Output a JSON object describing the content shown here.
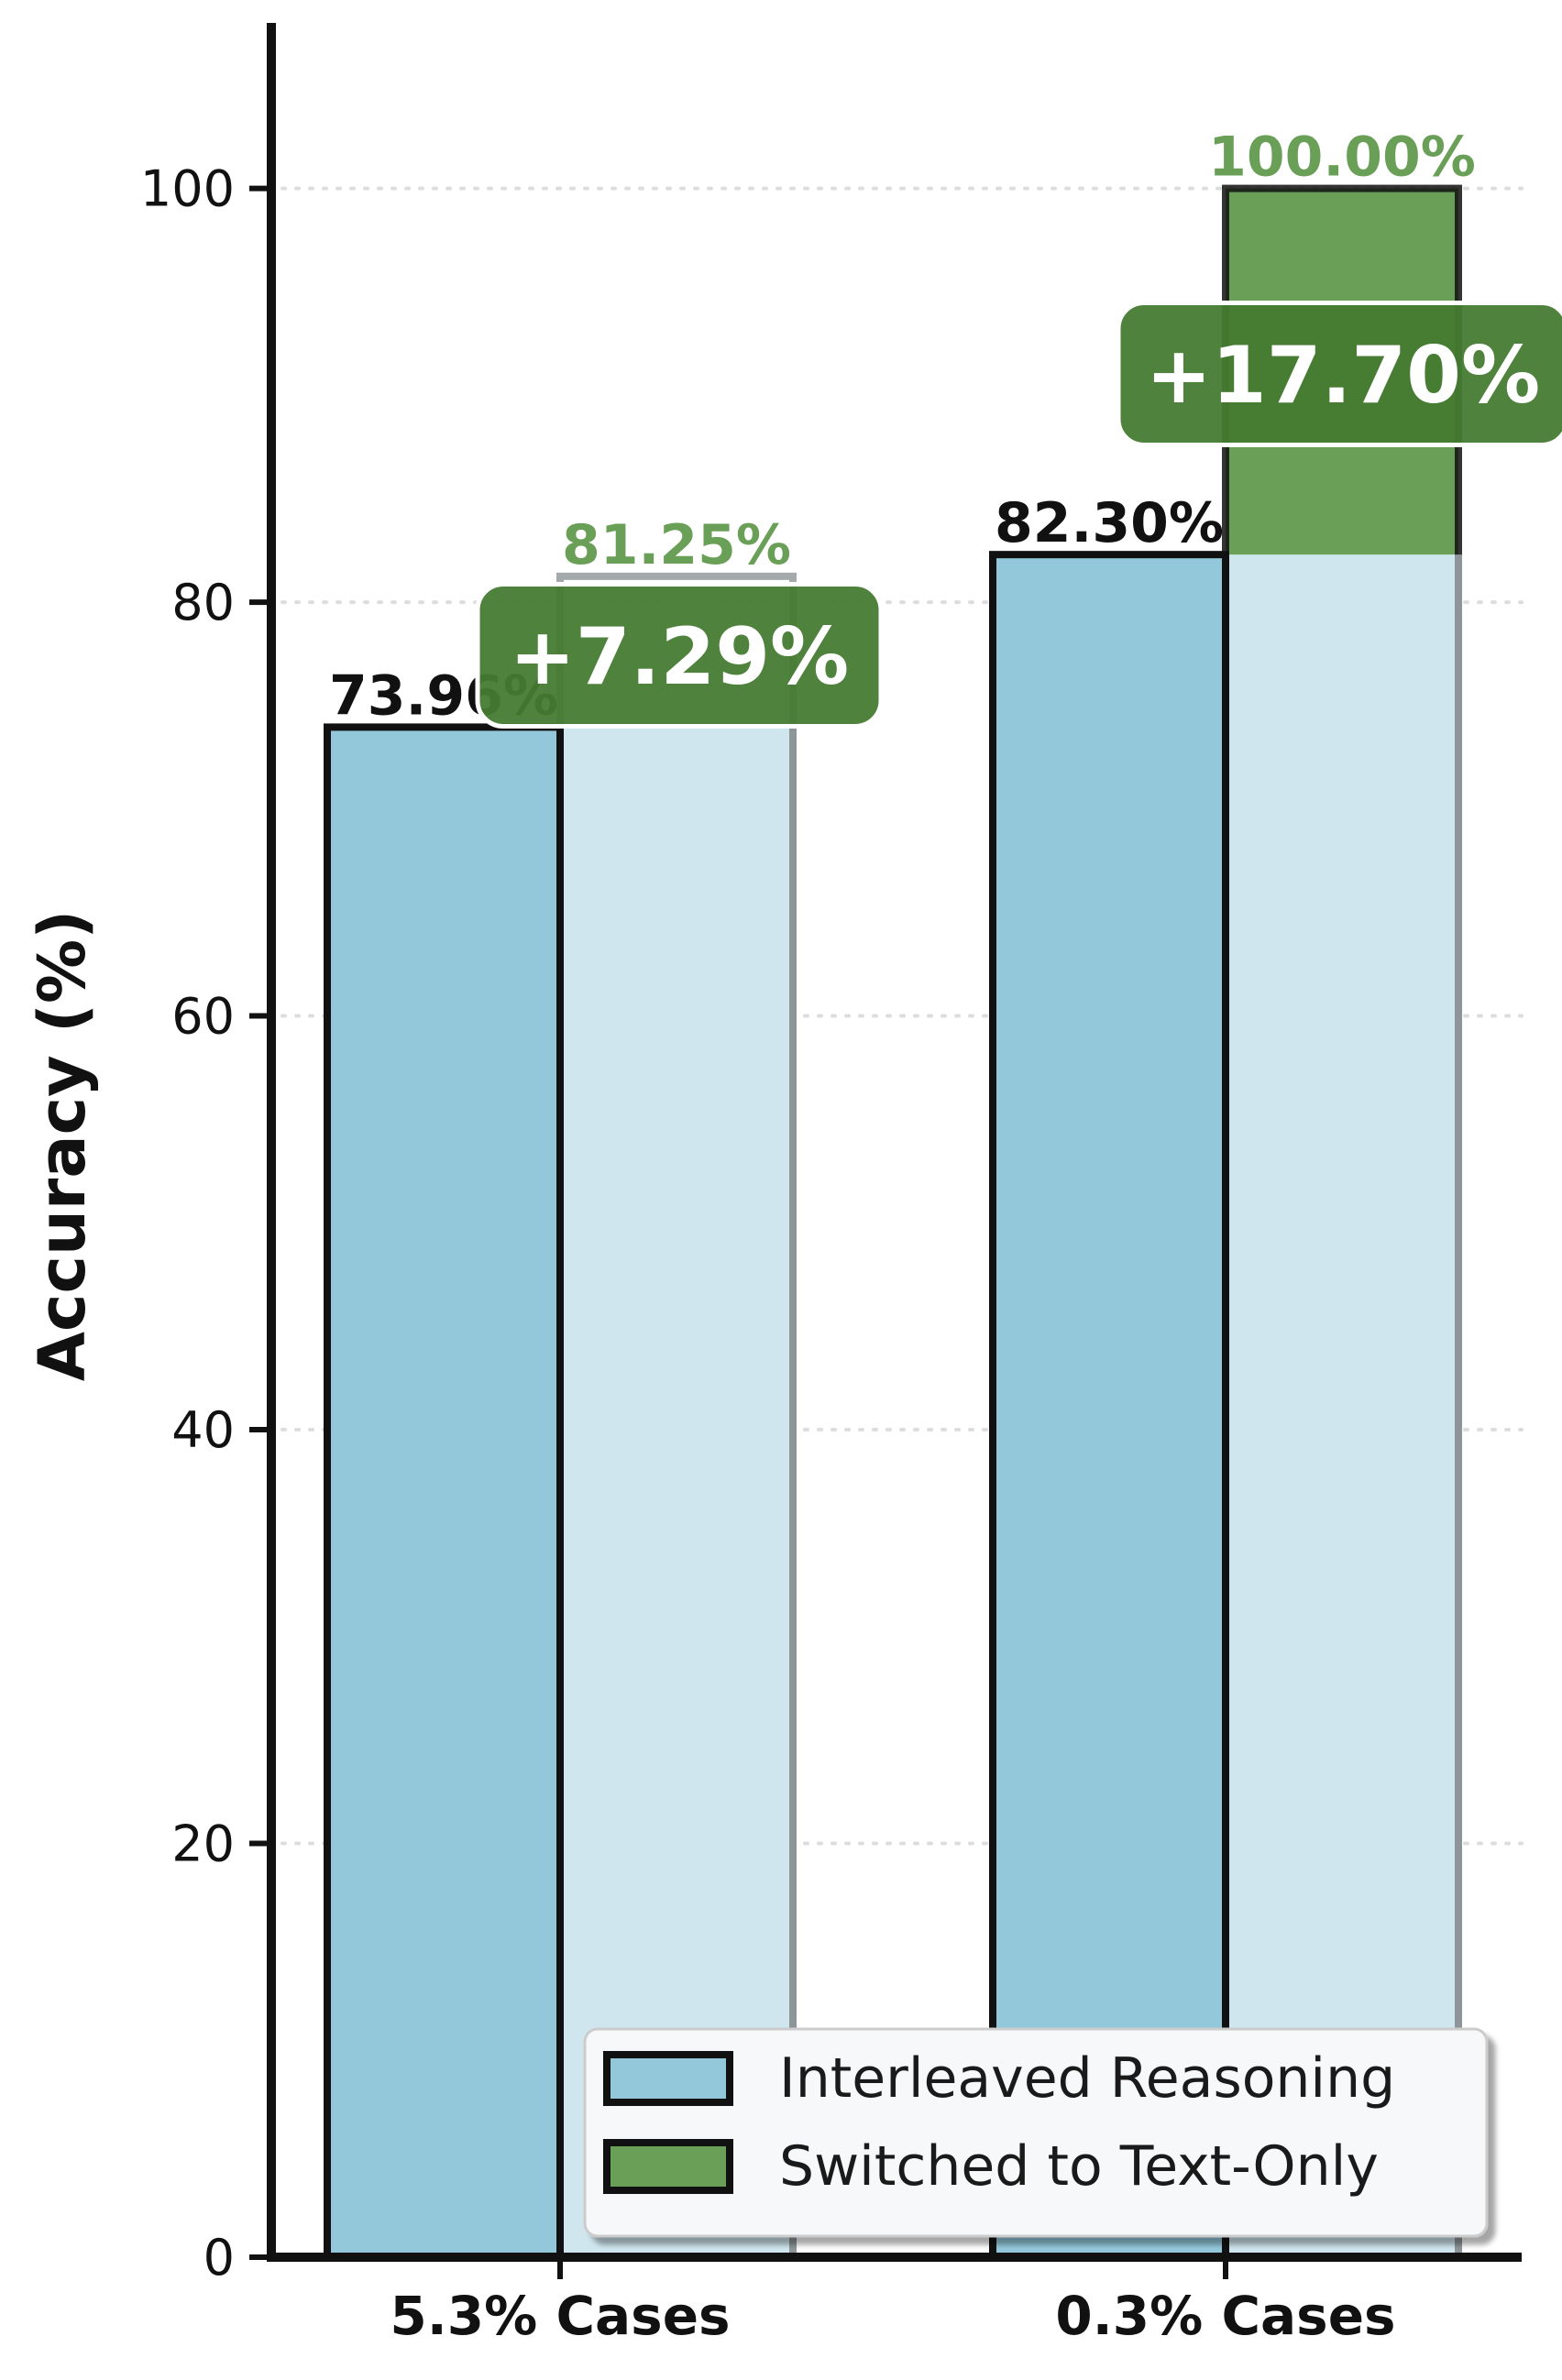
{
  "chart_data": {
    "type": "bar",
    "ylabel": "Accuracy (%)",
    "xlabel": "",
    "ylim": [
      0,
      108
    ],
    "yticks": [
      0,
      20,
      40,
      60,
      80,
      100
    ],
    "grid": "horizontal dotted",
    "legend_position": "lower-right",
    "categories": [
      "5.3% Cases",
      "0.3% Cases"
    ],
    "series": [
      {
        "name": "Interleaved Reasoning",
        "values": [
          73.96,
          82.3
        ],
        "labels": [
          "73.96%",
          "82.30%"
        ],
        "color": "#93c8da"
      },
      {
        "name": "Switched to Text-Only",
        "values": [
          81.25,
          100.0
        ],
        "labels": [
          "81.25%",
          "100.00%"
        ],
        "color": "#6a9f58",
        "base_color": "#cfe6ee"
      }
    ],
    "annotations": [
      {
        "category": "5.3% Cases",
        "text": "+7.29%",
        "value": 7.29
      },
      {
        "category": "0.3% Cases",
        "text": "+17.70%",
        "value": 17.7
      }
    ],
    "colors": {
      "gain_box": "#467b32",
      "switch_label": "#6a9f58",
      "grid": "#dddddd",
      "axis": "#111111"
    }
  }
}
